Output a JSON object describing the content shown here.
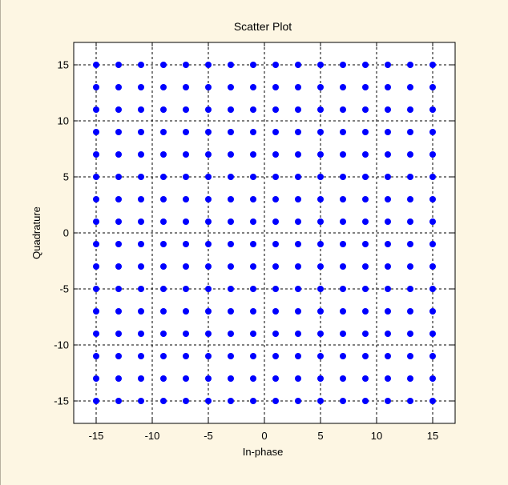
{
  "chart_data": {
    "type": "scatter",
    "title": "Scatter Plot",
    "xlabel": "In-phase",
    "ylabel": "Quadrature",
    "xlim": [
      -17,
      17
    ],
    "ylim": [
      -17,
      17
    ],
    "xticks": [
      -15,
      -10,
      -5,
      0,
      5,
      10,
      15
    ],
    "yticks": [
      -15,
      -10,
      -5,
      0,
      5,
      10,
      15
    ],
    "grid": true,
    "grid_style": "dashed",
    "marker_color": "#0000ff",
    "series": [
      {
        "points_levels_x": [
          -15,
          -13,
          -11,
          -9,
          -7,
          -5,
          -3,
          -1,
          1,
          3,
          5,
          7,
          9,
          11,
          13,
          15
        ],
        "points_levels_y": [
          -15,
          -13,
          -11,
          -9,
          -7,
          -5,
          -3,
          -1,
          1,
          3,
          5,
          7,
          9,
          11,
          13,
          15
        ],
        "description_of_layout": "full grid of all x/y level combinations"
      }
    ]
  },
  "colors": {
    "background": "#fdf6e3",
    "plot_area": "#ffffff",
    "marker": "#0000ff"
  }
}
